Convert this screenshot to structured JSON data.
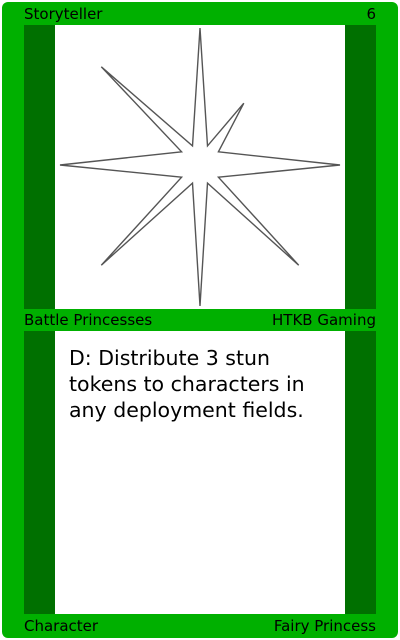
{
  "card": {
    "name": "Storyteller",
    "cost": "6",
    "set": "Battle Princesses",
    "publisher": "HTKB Gaming",
    "rules_text": "D: Distribute 3 stun tokens to characters in any deployment fields.",
    "type": "Character",
    "subtype": "Fairy Princess",
    "art_icon": "eight-point-star-icon"
  },
  "colors": {
    "frame": "#00b000",
    "stripe": "#007000",
    "panel": "#ffffff",
    "star_stroke": "#555555"
  }
}
